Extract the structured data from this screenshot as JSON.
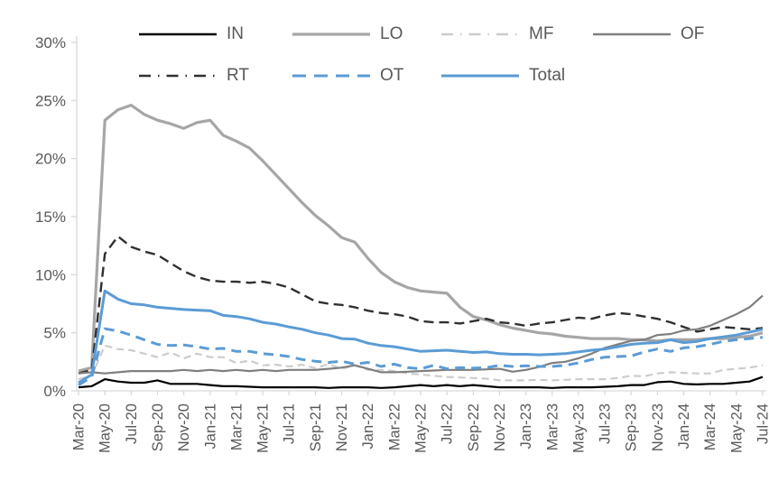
{
  "chart_data": {
    "type": "line",
    "ylabel": "",
    "xlabel": "",
    "ylim": [
      0,
      30
    ],
    "grid": false,
    "legend_position": "top",
    "y_ticks": [
      "0%",
      "5%",
      "10%",
      "15%",
      "20%",
      "25%",
      "30%"
    ],
    "x_tick_every": 2,
    "x": [
      "Mar-20",
      "Apr-20",
      "May-20",
      "Jun-20",
      "Jul-20",
      "Aug-20",
      "Sep-20",
      "Oct-20",
      "Nov-20",
      "Dec-20",
      "Jan-21",
      "Feb-21",
      "Mar-21",
      "Apr-21",
      "May-21",
      "Jun-21",
      "Jul-21",
      "Aug-21",
      "Sep-21",
      "Oct-21",
      "Nov-21",
      "Dec-21",
      "Jan-22",
      "Feb-22",
      "Mar-22",
      "Apr-22",
      "May-22",
      "Jun-22",
      "Jul-22",
      "Aug-22",
      "Sep-22",
      "Oct-22",
      "Nov-22",
      "Dec-22",
      "Jan-23",
      "Feb-23",
      "Mar-23",
      "Apr-23",
      "May-23",
      "Jun-23",
      "Jul-23",
      "Aug-23",
      "Sep-23",
      "Oct-23",
      "Nov-23",
      "Dec-23",
      "Jan-24",
      "Feb-24",
      "Mar-24",
      "Apr-24",
      "May-24",
      "Jun-24",
      "Jul-24"
    ],
    "series": [
      {
        "name": "IN",
        "color": "#000000",
        "width": 2.2,
        "dash": "",
        "values": [
          0.3,
          0.4,
          1.0,
          0.8,
          0.7,
          0.7,
          0.9,
          0.6,
          0.6,
          0.6,
          0.5,
          0.4,
          0.4,
          0.35,
          0.3,
          0.3,
          0.3,
          0.3,
          0.3,
          0.25,
          0.3,
          0.3,
          0.3,
          0.25,
          0.3,
          0.4,
          0.5,
          0.4,
          0.5,
          0.4,
          0.5,
          0.4,
          0.3,
          0.3,
          0.3,
          0.3,
          0.25,
          0.3,
          0.3,
          0.3,
          0.35,
          0.4,
          0.5,
          0.5,
          0.75,
          0.8,
          0.6,
          0.55,
          0.6,
          0.6,
          0.7,
          0.8,
          1.2
        ]
      },
      {
        "name": "LO",
        "color": "#a6a6a6",
        "width": 3.2,
        "dash": "",
        "values": [
          1.7,
          2.0,
          23.3,
          24.2,
          24.6,
          23.8,
          23.3,
          23.0,
          22.6,
          23.1,
          23.3,
          22.0,
          21.5,
          20.9,
          19.8,
          18.6,
          17.4,
          16.2,
          15.1,
          14.2,
          13.2,
          12.8,
          11.4,
          10.2,
          9.4,
          8.9,
          8.6,
          8.5,
          8.4,
          7.2,
          6.4,
          6.1,
          5.7,
          5.4,
          5.2,
          5.0,
          4.9,
          4.7,
          4.6,
          4.5,
          4.5,
          4.5,
          4.4,
          4.4,
          4.3,
          4.4,
          4.4,
          4.4,
          4.5,
          4.5,
          4.6,
          4.7,
          5.0
        ]
      },
      {
        "name": "MF",
        "color": "#cccccc",
        "width": 2.2,
        "dash": "8 5",
        "values": [
          1.0,
          1.3,
          3.9,
          3.6,
          3.5,
          3.2,
          2.9,
          3.3,
          2.8,
          3.2,
          2.9,
          2.9,
          2.4,
          2.6,
          2.2,
          2.25,
          2.1,
          2.25,
          1.95,
          2.3,
          1.9,
          2.2,
          1.8,
          1.8,
          1.7,
          1.5,
          1.4,
          1.3,
          1.2,
          1.15,
          1.1,
          1.05,
          0.9,
          0.9,
          0.9,
          0.95,
          0.9,
          0.95,
          1.0,
          1.0,
          1.0,
          1.1,
          1.3,
          1.25,
          1.5,
          1.6,
          1.55,
          1.5,
          1.5,
          1.8,
          1.9,
          2.0,
          2.2
        ]
      },
      {
        "name": "OF",
        "color": "#7f7f7f",
        "width": 2.2,
        "dash": "",
        "values": [
          1.5,
          1.6,
          1.5,
          1.6,
          1.7,
          1.7,
          1.7,
          1.7,
          1.8,
          1.7,
          1.8,
          1.7,
          1.8,
          1.7,
          1.8,
          1.7,
          1.8,
          1.8,
          1.8,
          1.9,
          2.0,
          2.2,
          1.9,
          1.6,
          1.6,
          1.65,
          1.7,
          1.75,
          1.8,
          1.8,
          1.8,
          1.85,
          1.9,
          1.65,
          1.8,
          2.05,
          2.4,
          2.5,
          2.8,
          3.2,
          3.7,
          4.0,
          4.3,
          4.4,
          4.8,
          4.9,
          5.2,
          5.3,
          5.6,
          6.1,
          6.6,
          7.2,
          8.2
        ]
      },
      {
        "name": "RT",
        "color": "#303030",
        "width": 2.4,
        "dash": "11 6",
        "values": [
          1.5,
          1.8,
          11.8,
          13.3,
          12.4,
          12.0,
          11.7,
          11.0,
          10.3,
          9.8,
          9.5,
          9.4,
          9.4,
          9.3,
          9.4,
          9.2,
          8.9,
          8.3,
          7.7,
          7.5,
          7.4,
          7.2,
          6.9,
          6.7,
          6.6,
          6.4,
          6.0,
          5.9,
          5.9,
          5.8,
          6.0,
          6.2,
          5.9,
          5.8,
          5.6,
          5.8,
          5.9,
          6.1,
          6.3,
          6.2,
          6.5,
          6.7,
          6.6,
          6.4,
          6.2,
          5.9,
          5.5,
          5.1,
          5.3,
          5.5,
          5.4,
          5.3,
          5.4
        ]
      },
      {
        "name": "OT",
        "color": "#5b9bd5",
        "width": 3.0,
        "dash": "11 7",
        "values": [
          0.5,
          1.2,
          5.35,
          5.15,
          4.8,
          4.4,
          4.0,
          3.9,
          3.95,
          3.8,
          3.6,
          3.65,
          3.4,
          3.4,
          3.2,
          3.1,
          2.95,
          2.7,
          2.55,
          2.45,
          2.55,
          2.3,
          2.45,
          2.1,
          2.3,
          2.0,
          1.9,
          2.2,
          1.9,
          2.0,
          1.95,
          2.0,
          2.2,
          2.1,
          2.15,
          2.1,
          2.1,
          2.2,
          2.4,
          2.7,
          2.9,
          2.95,
          3.0,
          3.35,
          3.6,
          3.4,
          3.7,
          3.8,
          4.0,
          4.25,
          4.4,
          4.5,
          4.6
        ]
      },
      {
        "name": "Total",
        "color": "#5b9bd5",
        "width": 3.0,
        "dash": "",
        "values": [
          0.7,
          1.4,
          8.6,
          7.9,
          7.5,
          7.4,
          7.2,
          7.1,
          7.0,
          6.95,
          6.9,
          6.5,
          6.4,
          6.2,
          5.9,
          5.75,
          5.5,
          5.3,
          5.0,
          4.8,
          4.5,
          4.45,
          4.1,
          3.9,
          3.8,
          3.6,
          3.4,
          3.45,
          3.5,
          3.4,
          3.3,
          3.35,
          3.2,
          3.15,
          3.15,
          3.1,
          3.15,
          3.2,
          3.35,
          3.5,
          3.6,
          3.8,
          4.0,
          4.1,
          4.15,
          4.4,
          4.15,
          4.25,
          4.5,
          4.65,
          4.8,
          5.05,
          5.3
        ]
      }
    ]
  },
  "legend": {
    "row_split": [
      4,
      3
    ],
    "swatch_dash": {
      "MF": "13 8 1.5 8",
      "RT": "13 8 1.5 8",
      "OT": "15 9"
    }
  },
  "axis": {
    "line_color": "#d9d9d9",
    "text_color": "#595959"
  }
}
